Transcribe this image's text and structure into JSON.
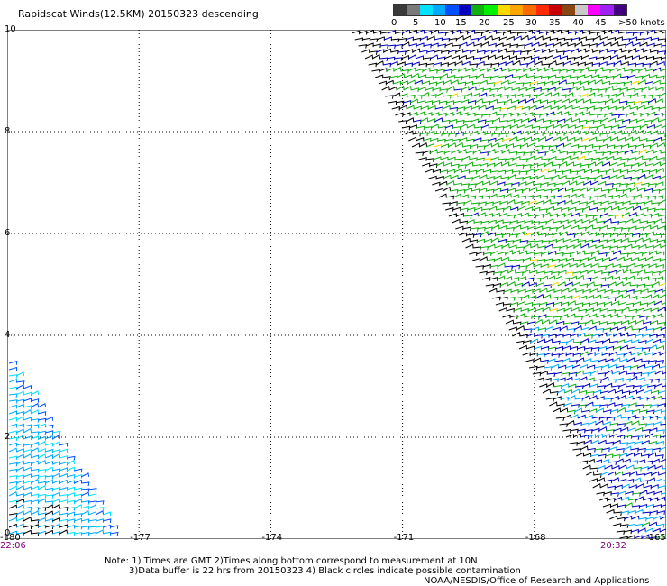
{
  "title": "Rapidscat Winds(12.5KM) 20150323 descending",
  "legend": {
    "colors": [
      "#3a3a3a",
      "#7a7a7a",
      "#00e0ff",
      "#00aaff",
      "#0050ff",
      "#0000c0",
      "#10b010",
      "#00f000",
      "#ffd800",
      "#ffa500",
      "#ff6a00",
      "#ff2a00",
      "#c80000",
      "#8b4513",
      "#c8c8c8",
      "#ff00ff",
      "#a020f0",
      "#400080"
    ],
    "labels": [
      "0",
      "5",
      "10",
      "15",
      "20",
      "25",
      "30",
      "35",
      "40",
      "45",
      ">50 knots"
    ]
  },
  "map": {
    "x_ticks": [
      "-180",
      "-177",
      "-174",
      "-171",
      "-168",
      "-165"
    ],
    "y_ticks": [
      "0",
      "2",
      "4",
      "6",
      "8",
      "10"
    ],
    "x_range": [
      -180,
      -165
    ],
    "y_range": [
      0,
      10
    ],
    "grid": "dotted"
  },
  "times": {
    "left": "22:06",
    "right": "20:32"
  },
  "notes": {
    "line1": "Note: 1) Times are GMT 2)Times along bottom correspond to measurement at 10N",
    "line2": "3)Data buffer is 22 hrs from 20150323 4) Black circles indicate possible contamination",
    "credit": "NOAA/NESDIS/Office of Research and Applications"
  }
}
